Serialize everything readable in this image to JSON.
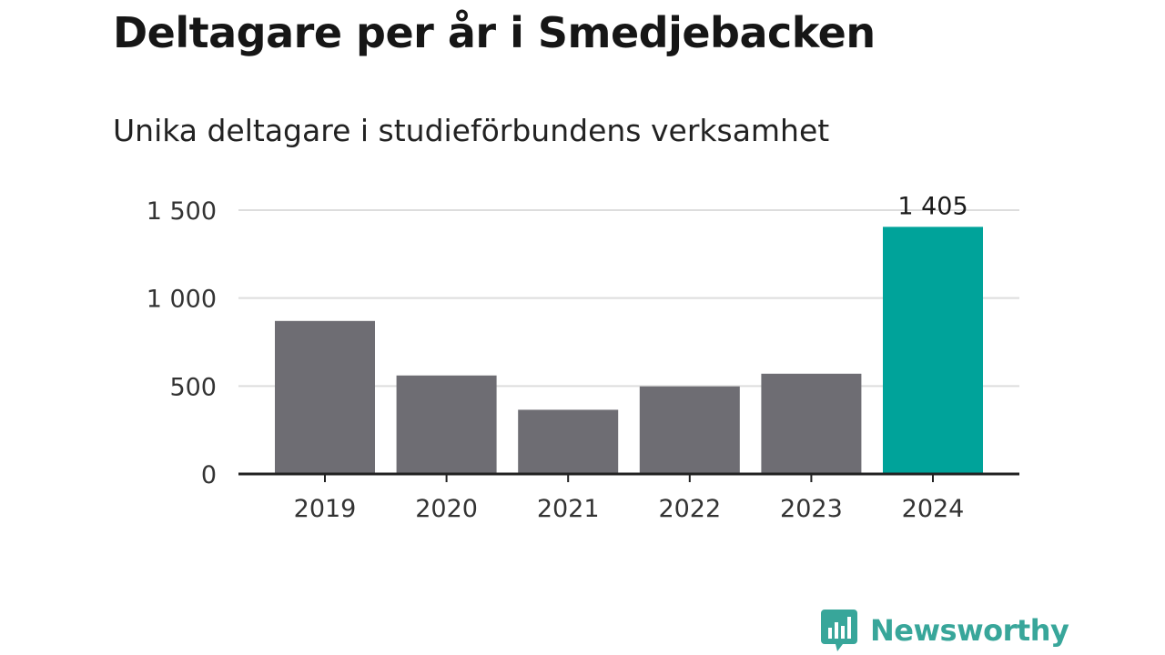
{
  "chart_data": {
    "type": "bar",
    "title": "Deltagare per år i Smedjebacken",
    "subtitle": "Unika deltagare i studieförbundens verksamhet",
    "categories": [
      "2019",
      "2020",
      "2021",
      "2022",
      "2023",
      "2024"
    ],
    "values": [
      870,
      560,
      365,
      498,
      570,
      1405
    ],
    "highlight_index": 5,
    "highlight_label": "1 405",
    "y_ticks": [
      0,
      500,
      1000,
      1500
    ],
    "y_tick_labels": [
      "0",
      "500",
      "1 000",
      "1 500"
    ],
    "ylim": [
      0,
      1500
    ],
    "grid": true,
    "xlabel": "",
    "ylabel": "",
    "colors": {
      "bar": "#6e6d73",
      "highlight": "#00a39a",
      "grid": "#dddddd",
      "axis": "#222222"
    }
  },
  "brand": {
    "name": "Newsworthy",
    "icon": "newsworthy-logo-icon",
    "color": "#38a69a"
  }
}
